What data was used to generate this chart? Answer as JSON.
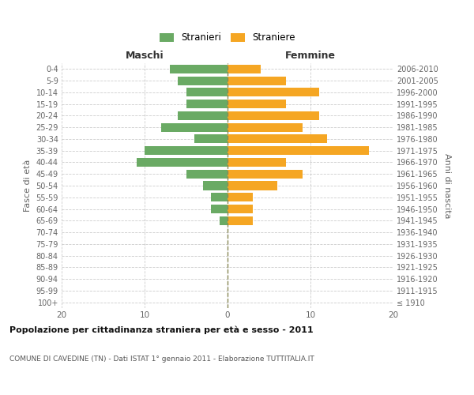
{
  "age_groups": [
    "100+",
    "95-99",
    "90-94",
    "85-89",
    "80-84",
    "75-79",
    "70-74",
    "65-69",
    "60-64",
    "55-59",
    "50-54",
    "45-49",
    "40-44",
    "35-39",
    "30-34",
    "25-29",
    "20-24",
    "15-19",
    "10-14",
    "5-9",
    "0-4"
  ],
  "birth_years": [
    "≤ 1910",
    "1911-1915",
    "1916-1920",
    "1921-1925",
    "1926-1930",
    "1931-1935",
    "1936-1940",
    "1941-1945",
    "1946-1950",
    "1951-1955",
    "1956-1960",
    "1961-1965",
    "1966-1970",
    "1971-1975",
    "1976-1980",
    "1981-1985",
    "1986-1990",
    "1991-1995",
    "1996-2000",
    "2001-2005",
    "2006-2010"
  ],
  "maschi": [
    0,
    0,
    0,
    0,
    0,
    0,
    0,
    1,
    2,
    2,
    3,
    5,
    11,
    10,
    4,
    8,
    6,
    5,
    5,
    6,
    7
  ],
  "femmine": [
    0,
    0,
    0,
    0,
    0,
    0,
    0,
    3,
    3,
    3,
    6,
    9,
    7,
    17,
    12,
    9,
    11,
    7,
    11,
    7,
    4
  ],
  "maschi_color": "#6aaa64",
  "femmine_color": "#f5a623",
  "bar_height": 0.75,
  "xlim": 20,
  "title": "Popolazione per cittadinanza straniera per età e sesso - 2011",
  "subtitle": "COMUNE DI CAVEDINE (TN) - Dati ISTAT 1° gennaio 2011 - Elaborazione TUTTITALIA.IT",
  "xlabel_left": "Maschi",
  "xlabel_right": "Femmine",
  "ylabel_left": "Fasce di età",
  "ylabel_right": "Anni di nascita",
  "legend_maschi": "Stranieri",
  "legend_femmine": "Straniere",
  "background_color": "#ffffff",
  "grid_color": "#cccccc",
  "text_color": "#666666"
}
